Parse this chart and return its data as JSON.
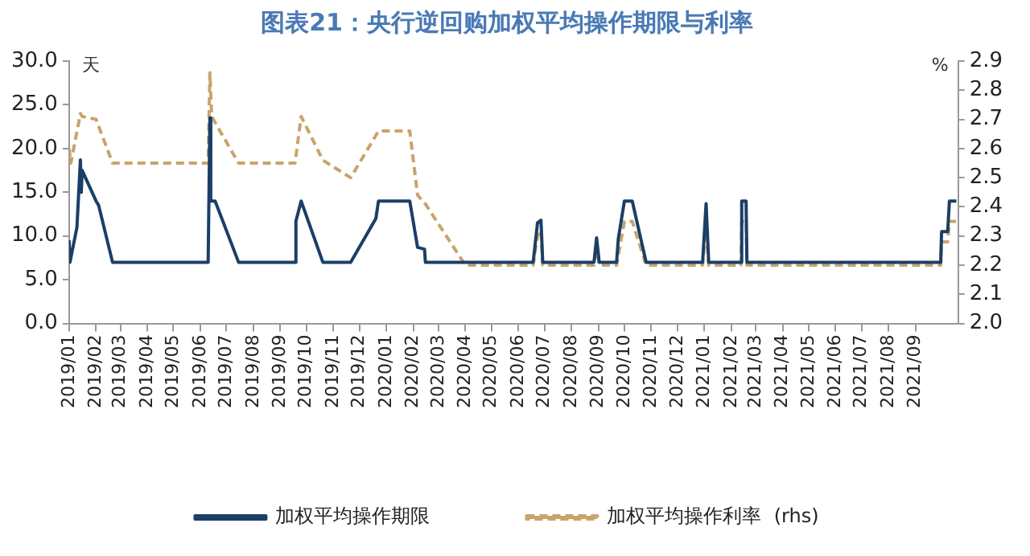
{
  "chart_data": {
    "type": "line",
    "title": "图表21：央行逆回购加权平均操作期限与利率",
    "ylabel": "天",
    "y2label": "%",
    "xlim": [
      "2019-01-01",
      "2021-10-20"
    ],
    "xticks": [
      {
        "value": "2019-01",
        "label": "2019/01"
      },
      {
        "value": "2019-02",
        "label": "2019/02"
      },
      {
        "value": "2019-03",
        "label": "2019/03"
      },
      {
        "value": "2019-04",
        "label": "2019/04"
      },
      {
        "value": "2019-05",
        "label": "2019/05"
      },
      {
        "value": "2019-06",
        "label": "2019/06"
      },
      {
        "value": "2019-07",
        "label": "2019/07"
      },
      {
        "value": "2019-08",
        "label": "2019/08"
      },
      {
        "value": "2019-09",
        "label": "2019/09"
      },
      {
        "value": "2019-10",
        "label": "2019/10"
      },
      {
        "value": "2019-11",
        "label": "2019/11"
      },
      {
        "value": "2019-12",
        "label": "2019/12"
      },
      {
        "value": "2020-01",
        "label": "2020/01"
      },
      {
        "value": "2020-02",
        "label": "2020/02"
      },
      {
        "value": "2020-03",
        "label": "2020/03"
      },
      {
        "value": "2020-04",
        "label": "2020/04"
      },
      {
        "value": "2020-05",
        "label": "2020/05"
      },
      {
        "value": "2020-06",
        "label": "2020/06"
      },
      {
        "value": "2020-07",
        "label": "2020/07"
      },
      {
        "value": "2020-08",
        "label": "2020/08"
      },
      {
        "value": "2020-09",
        "label": "2020/09"
      },
      {
        "value": "2020-10",
        "label": "2020/10"
      },
      {
        "value": "2020-11",
        "label": "2020/11"
      },
      {
        "value": "2020-12",
        "label": "2020/12"
      },
      {
        "value": "2021-01",
        "label": "2021/01"
      },
      {
        "value": "2021-02",
        "label": "2021/02"
      },
      {
        "value": "2021-03",
        "label": "2021/03"
      },
      {
        "value": "2021-04",
        "label": "2021/04"
      },
      {
        "value": "2021-05",
        "label": "2021/05"
      },
      {
        "value": "2021-06",
        "label": "2021/06"
      },
      {
        "value": "2021-07",
        "label": "2021/07"
      },
      {
        "value": "2021-08",
        "label": "2021/08"
      },
      {
        "value": "2021-09",
        "label": "2021/09"
      }
    ],
    "ylim": [
      0,
      30
    ],
    "yticks": [
      {
        "value": 0,
        "label": "0.0"
      },
      {
        "value": 5,
        "label": "5.0"
      },
      {
        "value": 10,
        "label": "10.0"
      },
      {
        "value": 15,
        "label": "15.0"
      },
      {
        "value": 20,
        "label": "20.0"
      },
      {
        "value": 25,
        "label": "25.0"
      },
      {
        "value": 30,
        "label": "30.0"
      }
    ],
    "y2lim": [
      2,
      2.9
    ],
    "y2ticks": [
      {
        "value": 2,
        "label": "2.0"
      },
      2.1,
      2.2,
      2.3,
      2.4,
      2.5,
      2.6,
      2.7,
      2.8,
      2.9
    ],
    "grid": false,
    "legend": "bottom",
    "marker": "none",
    "series": [
      {
        "name": "加权平均操作期限",
        "color": "#1b3f66",
        "line_style": "solid",
        "x": [
          "2019-01-01",
          "2019-01-02",
          "2019-01-10",
          "2019-01-14",
          "2019-01-15",
          "2019-01-16",
          "2019-02-01",
          "2019-02-04",
          "2019-02-20",
          "2019-06-10",
          "2019-06-12",
          "2019-06-13",
          "2019-06-18",
          "2019-07-15",
          "2019-09-18",
          "2019-09-19",
          "2019-09-25",
          "2019-10-20",
          "2019-11-21",
          "2019-12-20",
          "2019-12-23",
          "2020-01-28",
          "2020-02-06",
          "2020-02-14",
          "2020-02-15",
          "2020-06-18",
          "2020-06-23",
          "2020-06-27",
          "2020-06-29",
          "2020-08-27",
          "2020-08-30",
          "2020-09-02",
          "2020-09-22",
          "2020-09-24",
          "2020-10-01",
          "2020-10-10",
          "2020-10-26",
          "2020-12-30",
          "2021-01-03",
          "2021-01-06",
          "2021-02-12",
          "2021-02-13",
          "2021-02-18",
          "2021-02-19",
          "2021-09-30",
          "2021-10-01",
          "2021-10-08",
          "2021-10-10",
          "2021-10-18"
        ],
        "values": [
          9.5,
          7.0,
          11.0,
          18.7,
          15.0,
          17.5,
          14.0,
          13.5,
          7.0,
          7.0,
          23.5,
          14.0,
          14.0,
          7.0,
          7.0,
          11.7,
          14.0,
          7.0,
          7.0,
          12.0,
          14.0,
          14.0,
          8.7,
          8.5,
          7.0,
          7.0,
          11.5,
          11.8,
          7.0,
          7.0,
          9.8,
          7.0,
          7.0,
          9.7,
          14.0,
          14.0,
          7.0,
          7.0,
          13.7,
          7.0,
          7.0,
          14.0,
          14.0,
          7.0,
          7.0,
          10.5,
          10.5,
          14.0,
          14.0
        ]
      },
      {
        "name": "加权平均操作利率  (rhs)",
        "color": "#c8a46c",
        "line_style": "dashed",
        "axis": "y2",
        "x": [
          "2019-01-01",
          "2019-01-03",
          "2019-01-14",
          "2019-01-16",
          "2019-02-01",
          "2019-02-20",
          "2019-06-10",
          "2019-06-12",
          "2019-06-14",
          "2019-07-15",
          "2019-09-18",
          "2019-09-25",
          "2019-10-20",
          "2019-11-21",
          "2019-12-23",
          "2020-01-28",
          "2020-02-06",
          "2020-02-15",
          "2020-04-01",
          "2020-06-18",
          "2020-06-23",
          "2020-06-27",
          "2020-06-29",
          "2020-08-27",
          "2020-08-30",
          "2020-09-02",
          "2020-09-22",
          "2020-10-01",
          "2020-10-10",
          "2020-10-26",
          "2020-12-30",
          "2021-01-03",
          "2021-01-06",
          "2021-02-12",
          "2021-02-13",
          "2021-02-18",
          "2021-02-19",
          "2021-09-30",
          "2021-10-01",
          "2021-10-08",
          "2021-10-10",
          "2021-10-18"
        ],
        "values": [
          2.6,
          2.55,
          2.72,
          2.71,
          2.7,
          2.55,
          2.55,
          2.86,
          2.71,
          2.55,
          2.55,
          2.71,
          2.56,
          2.5,
          2.66,
          2.66,
          2.44,
          2.41,
          2.2,
          2.2,
          2.3,
          2.32,
          2.2,
          2.2,
          2.27,
          2.2,
          2.2,
          2.35,
          2.35,
          2.2,
          2.2,
          2.34,
          2.2,
          2.2,
          2.35,
          2.35,
          2.2,
          2.2,
          2.28,
          2.28,
          2.35,
          2.35
        ]
      }
    ]
  }
}
